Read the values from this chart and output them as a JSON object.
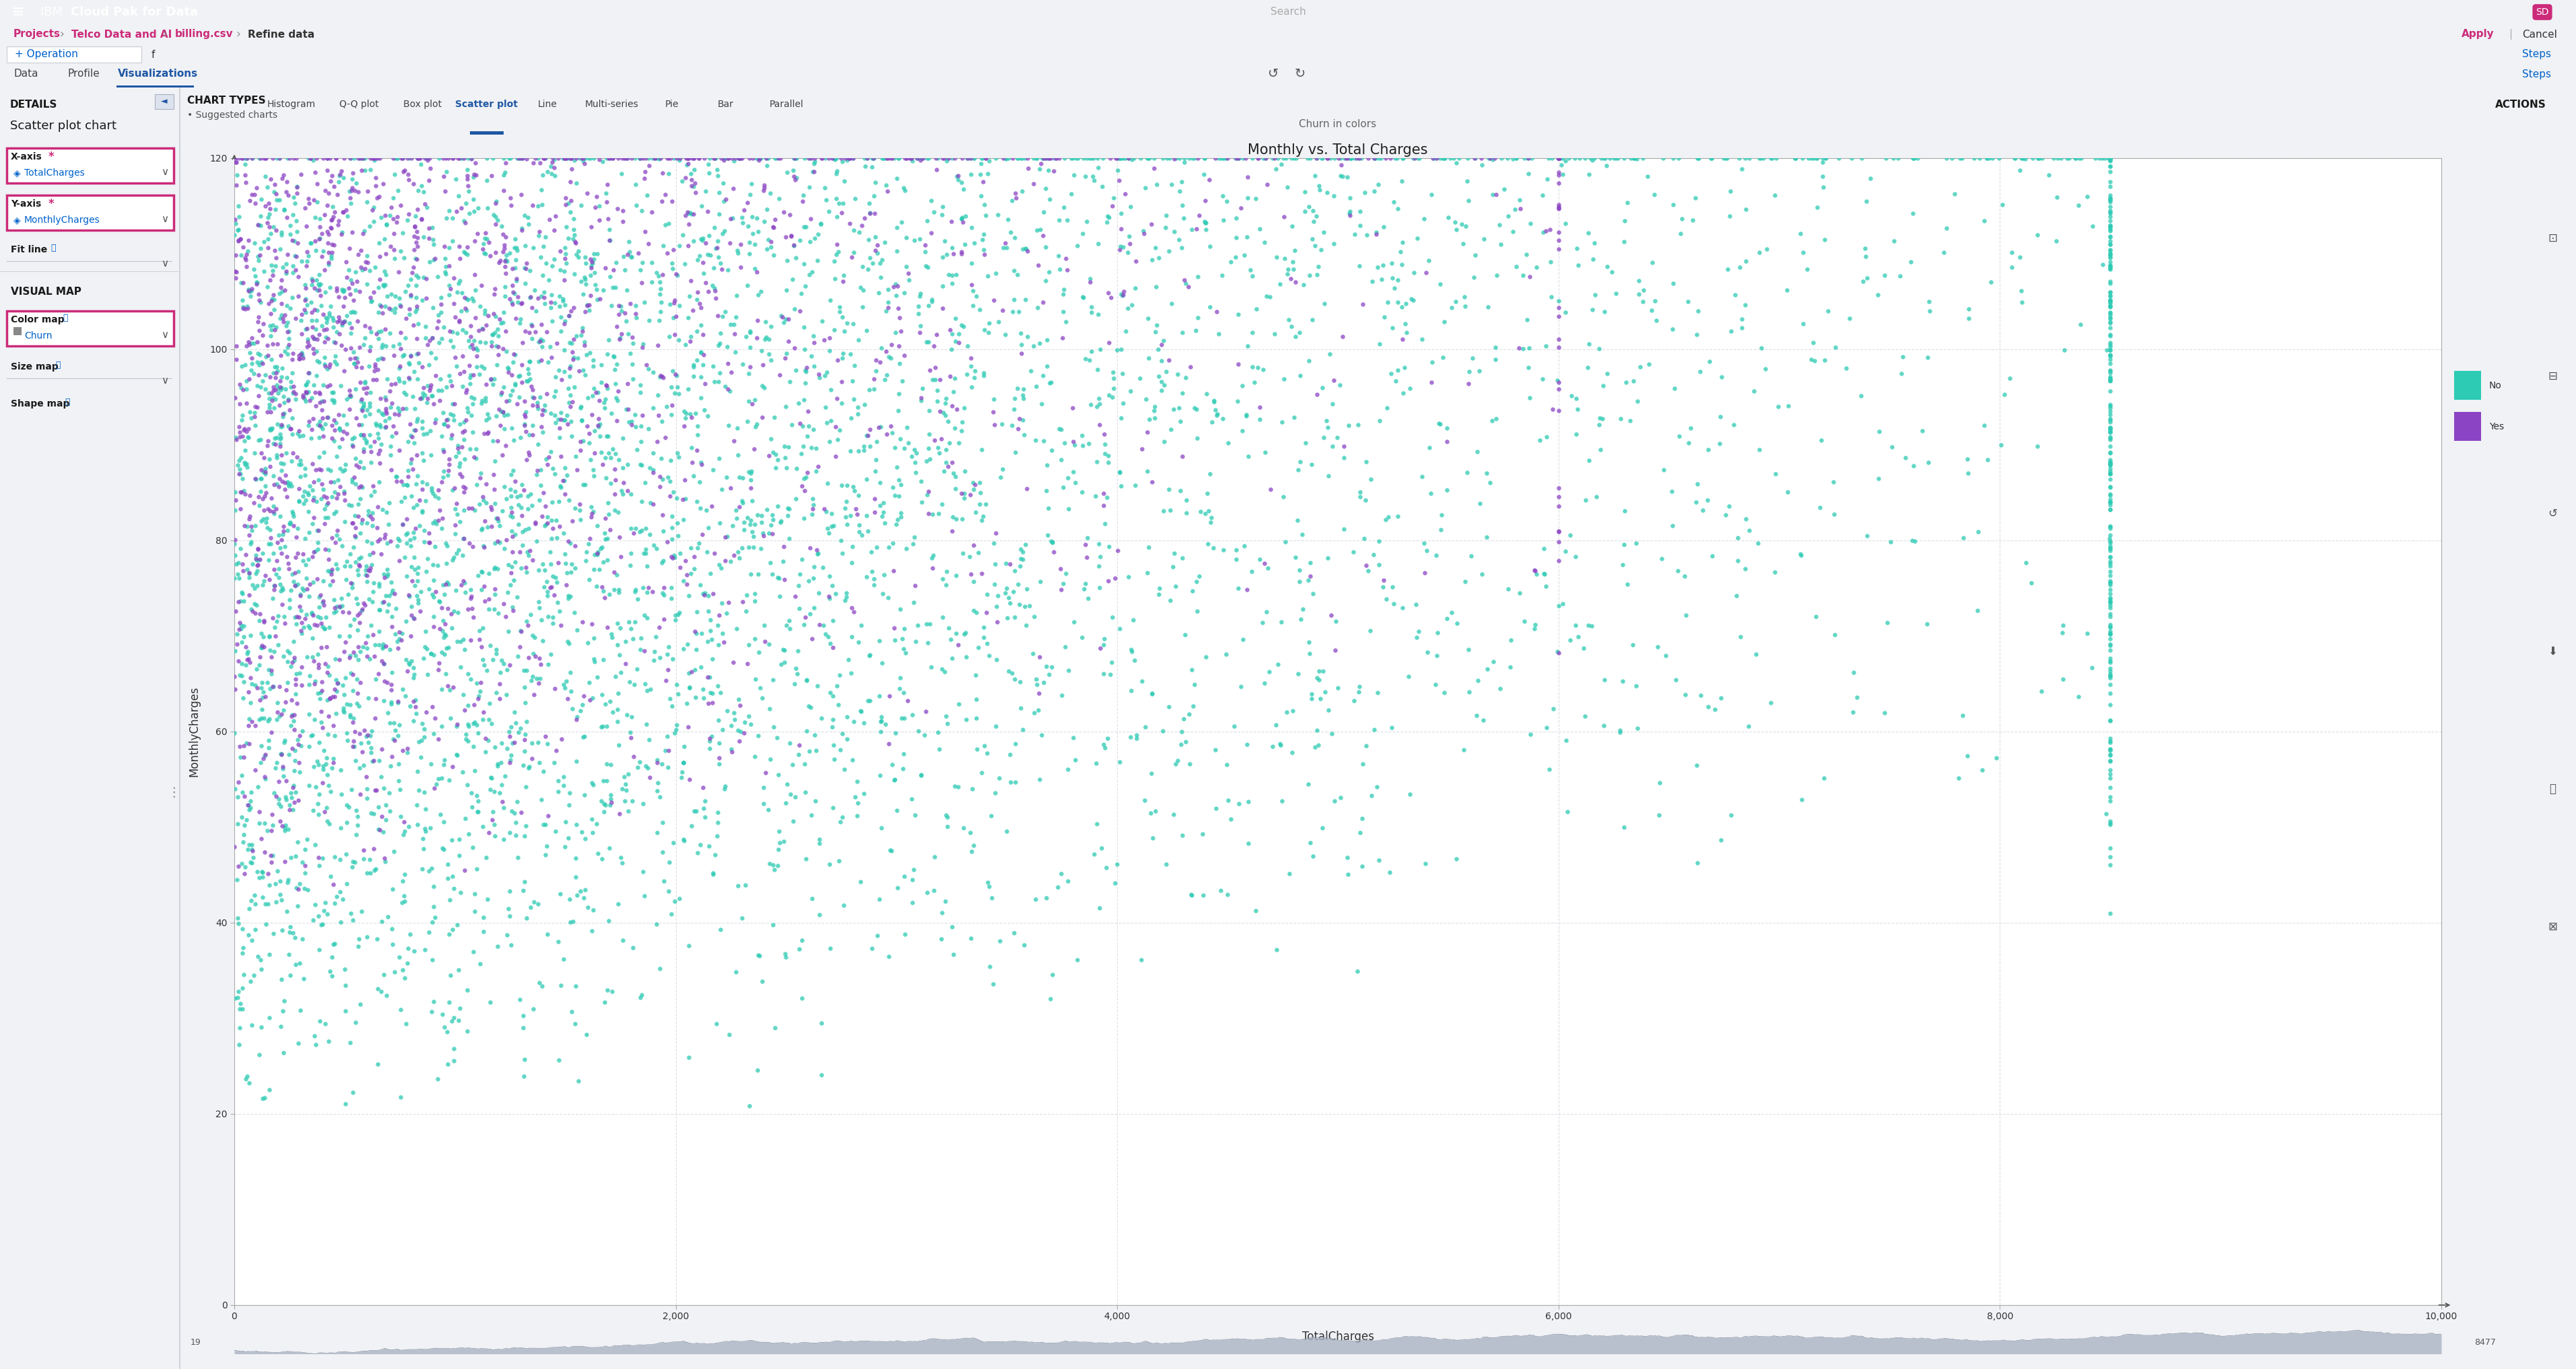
{
  "title": "Monthly vs. Total Charges",
  "subtitle": "Churn in colors",
  "xlabel": "TotalCharges",
  "ylabel": "MonthlyCharges",
  "xlim": [
    0,
    10000
  ],
  "ylim": [
    0,
    120
  ],
  "xticks": [
    0,
    2000,
    4000,
    6000,
    8000,
    10000
  ],
  "xtick_labels": [
    "0",
    "2,000",
    "4,000",
    "6,000",
    "8,000",
    "10,000"
  ],
  "yticks": [
    0,
    20,
    40,
    60,
    80,
    100,
    120
  ],
  "ytick_labels": [
    "0",
    "20",
    "40",
    "60",
    "80",
    "100",
    "120"
  ],
  "color_no": "#2dcab4",
  "color_yes": "#8b44c4",
  "legend_no": "No",
  "legend_yes": "Yes",
  "navbar_color": "#2d2d2d",
  "breadcrumb_color": "#cc2b7a",
  "breadcrumbs": [
    "Projects",
    "Telco Data and AI",
    "billing.csv",
    "Refine data"
  ],
  "tab_active": "Visualizations",
  "tabs": [
    "Data",
    "Profile",
    "Visualizations"
  ],
  "xaxis_value": "TotalCharges",
  "yaxis_value": "MonthlyCharges",
  "colormap_value": "Churn",
  "chart_types": [
    "Histogram",
    "Q-Q plot",
    "Box plot",
    "Scatter plot",
    "Line",
    "Multi-series",
    "Pie",
    "Bar",
    "Parallel"
  ],
  "scatter_data_seed": 42,
  "n_points_no": 5174,
  "n_points_yes": 1869,
  "minimap_min": 19,
  "minimap_max": 8477,
  "grid_color": "#d9dce3",
  "scatter_alpha": 0.75,
  "dot_size": 22
}
